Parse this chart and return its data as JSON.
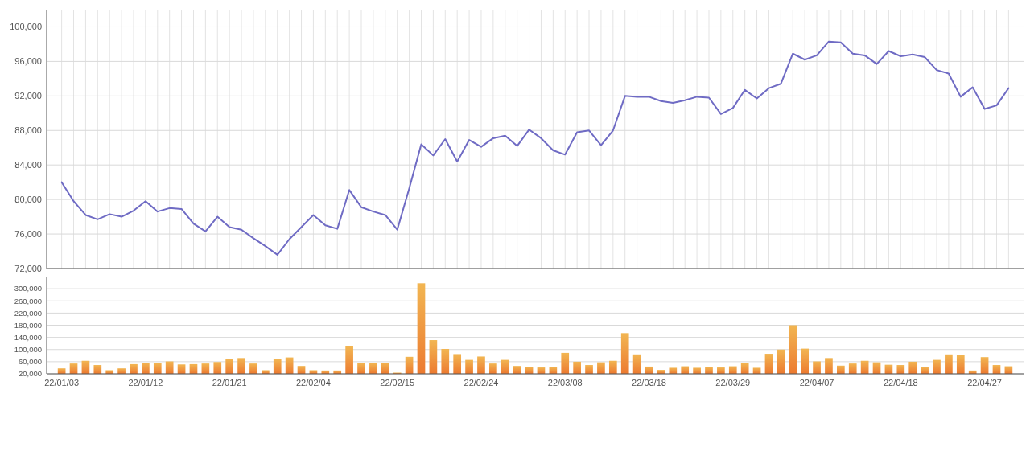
{
  "chart_data": [
    {
      "type": "line",
      "categories": [
        null,
        null,
        null,
        null,
        null,
        null,
        null,
        null,
        null,
        null,
        null,
        null,
        null,
        null,
        null,
        null,
        null,
        null,
        null,
        null,
        null,
        null,
        null,
        null,
        null,
        null,
        null,
        null,
        null,
        null,
        null,
        null,
        null,
        null,
        null,
        null,
        null,
        null,
        null,
        null,
        null,
        null,
        null,
        null,
        null,
        null,
        null,
        null,
        null,
        null,
        null,
        null,
        null,
        null,
        null,
        null,
        null,
        null,
        null,
        null,
        null,
        null,
        null,
        null,
        null,
        null,
        null,
        null,
        null,
        null,
        null,
        null,
        null,
        null,
        null,
        null,
        null,
        null,
        null,
        null
      ],
      "series": [
        {
          "color": "#6f6bc4",
          "values": [
            82000,
            79800,
            78200,
            77700,
            78300,
            78000,
            78700,
            79800,
            78600,
            79000,
            78900,
            77200,
            76300,
            78000,
            76800,
            76500,
            75500,
            74600,
            73600,
            75400,
            76800,
            78200,
            77000,
            76600,
            81100,
            79100,
            78600,
            78200,
            76500,
            81300,
            86400,
            85100,
            87000,
            84400,
            86900,
            86100,
            87100,
            87400,
            86200,
            88100,
            87100,
            85700,
            85200,
            87800,
            88000,
            86300,
            88000,
            92000,
            91900,
            91900,
            91400,
            91200,
            91500,
            91900,
            91800,
            89900,
            90600,
            92700,
            91700,
            92900,
            93400,
            96900,
            96200,
            96700,
            98300,
            98200,
            96900,
            96700,
            95700,
            97200,
            96600,
            96800,
            96500,
            95000,
            94600,
            91900,
            93000,
            90500,
            90900,
            92900
          ]
        }
      ],
      "ylim": [
        72000,
        102000
      ],
      "yticks": [
        {
          "value": 72000,
          "label": "72,000"
        },
        {
          "value": 76000,
          "label": "76,000"
        },
        {
          "value": 80000,
          "label": "80,000"
        },
        {
          "value": 84000,
          "label": "84,000"
        },
        {
          "value": 88000,
          "label": "88,000"
        },
        {
          "value": 92000,
          "label": "92,000"
        },
        {
          "value": 96000,
          "label": "96,000"
        },
        {
          "value": 100000,
          "label": "100,000"
        }
      ],
      "grid": true,
      "tick_labels": "y"
    },
    {
      "type": "bar",
      "categories": [
        "22/01/03",
        null,
        null,
        null,
        null,
        null,
        null,
        "22/01/12",
        null,
        null,
        null,
        null,
        null,
        null,
        "22/01/21",
        null,
        null,
        null,
        null,
        null,
        null,
        "22/02/04",
        null,
        null,
        null,
        null,
        null,
        null,
        "22/02/15",
        null,
        null,
        null,
        null,
        null,
        null,
        "22/02/24",
        null,
        null,
        null,
        null,
        null,
        null,
        "22/03/08",
        null,
        null,
        null,
        null,
        null,
        null,
        "22/03/18",
        null,
        null,
        null,
        null,
        null,
        null,
        "22/03/29",
        null,
        null,
        null,
        null,
        null,
        null,
        "22/04/07",
        null,
        null,
        null,
        null,
        null,
        null,
        "22/04/18",
        null,
        null,
        null,
        null,
        null,
        null,
        "22/04/27",
        null,
        null
      ],
      "series": [
        {
          "color": "#ec7a30",
          "values": [
            38000,
            54000,
            63000,
            49000,
            32000,
            38000,
            52000,
            57000,
            55000,
            61000,
            51000,
            52000,
            54000,
            59000,
            69000,
            72000,
            54000,
            32000,
            68000,
            74000,
            46000,
            32000,
            31000,
            31000,
            111000,
            55000,
            55000,
            57000,
            24000,
            76000,
            318000,
            131000,
            102000,
            85000,
            66000,
            77000,
            54000,
            66000,
            46000,
            43000,
            41000,
            42000,
            89000,
            60000,
            49000,
            58000,
            63000,
            154000,
            84000,
            44000,
            33000,
            40000,
            45000,
            40000,
            42000,
            41000,
            45000,
            55000,
            40000,
            86000,
            100000,
            180000,
            103000,
            61000,
            72000,
            47000,
            54000,
            63000,
            58000,
            50000,
            49000,
            60000,
            42000,
            66000,
            84000,
            81000,
            31000,
            75000,
            49000,
            45000
          ]
        }
      ],
      "ylim": [
        20000,
        340000
      ],
      "yticks": [
        {
          "value": 20000,
          "label": "20,000"
        },
        {
          "value": 60000,
          "label": "60,000"
        },
        {
          "value": 100000,
          "label": "100,000"
        },
        {
          "value": 140000,
          "label": "140,000"
        },
        {
          "value": 180000,
          "label": "180,000"
        },
        {
          "value": 220000,
          "label": "220,000"
        },
        {
          "value": 260000,
          "label": "260,000"
        },
        {
          "value": 300000,
          "label": "300,000"
        }
      ],
      "grid": "y"
    }
  ]
}
